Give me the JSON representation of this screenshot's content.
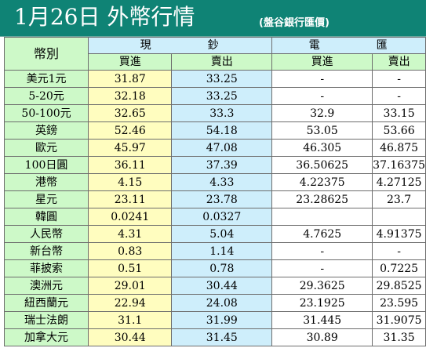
{
  "title": "1月26日 外幣行情",
  "source": "(盤谷銀行匯價)",
  "table": {
    "corner": "幣別",
    "groups": {
      "cash": [
        "現",
        "鈔"
      ],
      "telegraphic": [
        "電",
        "匯"
      ]
    },
    "subheaders": [
      "買進",
      "賣出",
      "買進",
      "賣出"
    ],
    "rows": [
      {
        "name": "美元1元",
        "values": [
          "31.87",
          "33.25",
          "-",
          "-"
        ]
      },
      {
        "name": "5-20元",
        "values": [
          "32.18",
          "33.25",
          "-",
          "-"
        ]
      },
      {
        "name": "50-100元",
        "values": [
          "32.65",
          "33.3",
          "32.9",
          "33.15"
        ]
      },
      {
        "name": "英鎊",
        "values": [
          "52.46",
          "54.18",
          "53.05",
          "53.66"
        ]
      },
      {
        "name": "歐元",
        "values": [
          "45.97",
          "47.08",
          "46.305",
          "46.875"
        ]
      },
      {
        "name": "100日圓",
        "values": [
          "36.11",
          "37.39",
          "36.50625",
          "37.16375"
        ]
      },
      {
        "name": "港幣",
        "values": [
          "4.15",
          "4.33",
          "4.22375",
          "4.27125"
        ]
      },
      {
        "name": "星元",
        "values": [
          "23.11",
          "23.78",
          "23.28625",
          "23.7"
        ]
      },
      {
        "name": "韓圓",
        "values": [
          "0.0241",
          "0.0327",
          "",
          ""
        ]
      },
      {
        "name": "人民幣",
        "values": [
          "4.31",
          "5.04",
          "4.7625",
          "4.91375"
        ]
      },
      {
        "name": "新台幣",
        "values": [
          "0.83",
          "1.14",
          "-",
          "-"
        ]
      },
      {
        "name": "菲披索",
        "values": [
          "0.51",
          "0.78",
          "-",
          "0.7225"
        ]
      },
      {
        "name": "澳洲元",
        "values": [
          "29.01",
          "30.44",
          "29.3625",
          "29.8525"
        ]
      },
      {
        "name": "紐西蘭元",
        "values": [
          "22.94",
          "24.08",
          "23.1925",
          "23.595"
        ]
      },
      {
        "name": "瑞士法朗",
        "values": [
          "31.1",
          "31.99",
          "31.445",
          "31.9075"
        ]
      },
      {
        "name": "加拿大元",
        "values": [
          "30.44",
          "31.45",
          "30.89",
          "31.35"
        ]
      }
    ]
  },
  "colors": {
    "header_bg": "#0f8375",
    "name_col": "#cdf9c8",
    "cash_buy_col": "#fffdbf",
    "cash_sell_col": "#ceeefb",
    "tt_col": "#ffffff"
  }
}
